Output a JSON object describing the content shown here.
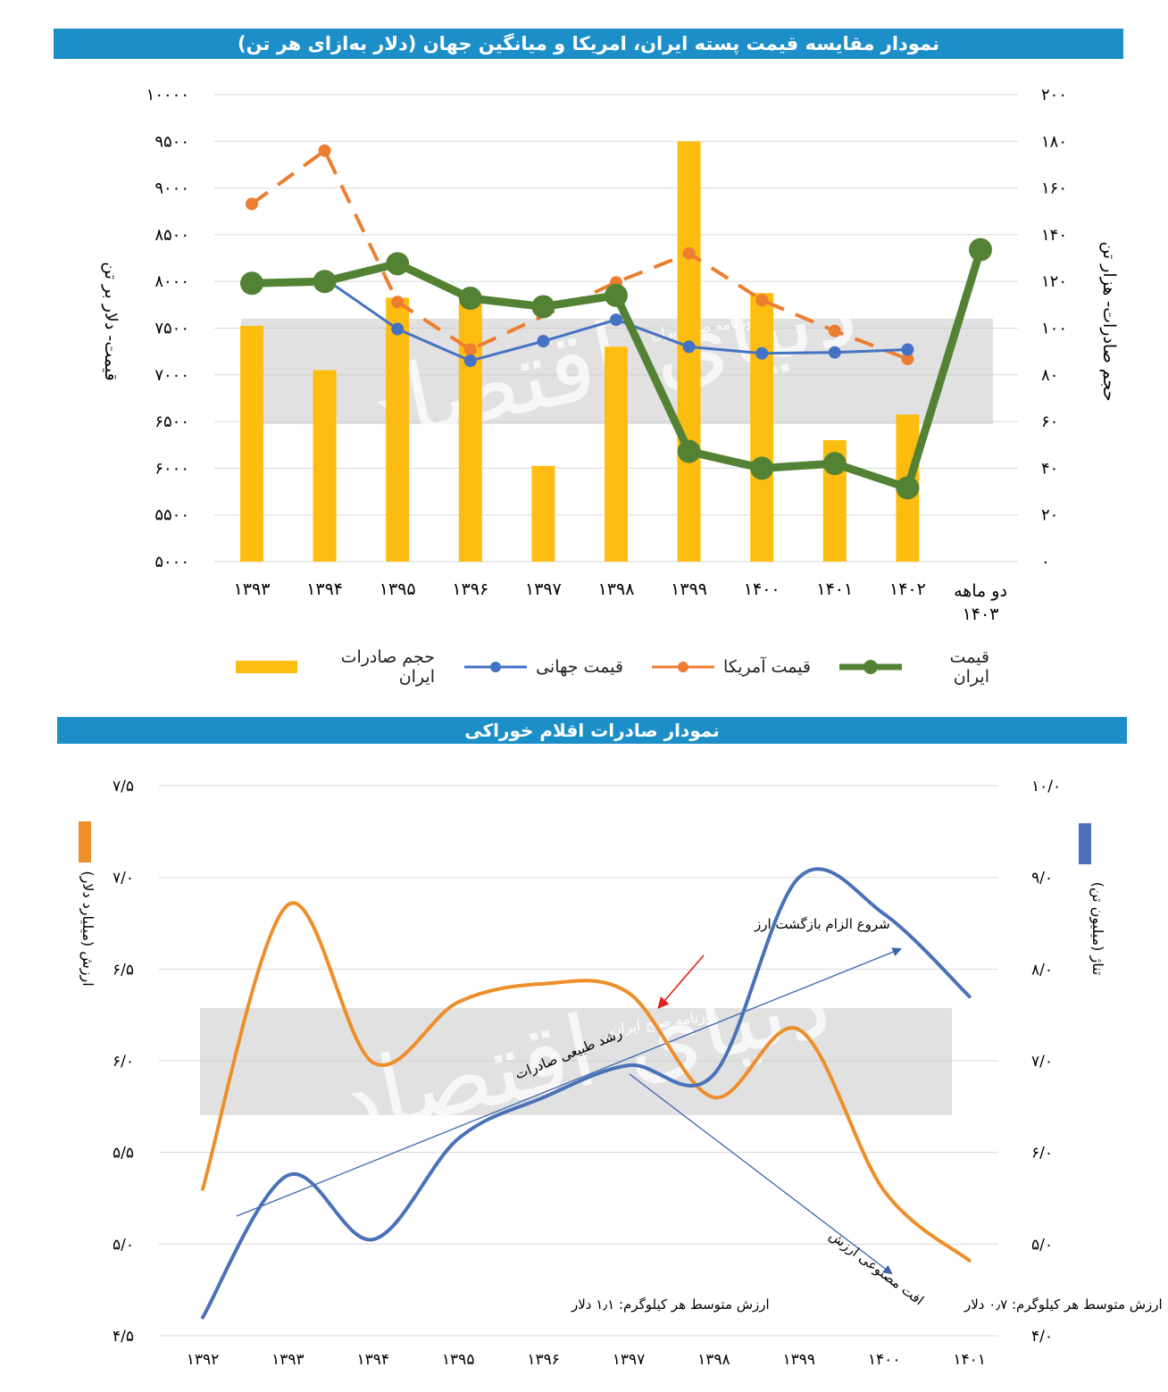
{
  "chart_data": [
    {
      "type": "bar+line",
      "title": "نمودار مقایسه قیمت پسته ایران، امریکا و میانگین جهان (دلار به‌ازای هر تن)",
      "categories": [
        "۱۳۹۳",
        "۱۳۹۴",
        "۱۳۹۵",
        "۱۳۹۶",
        "۱۳۹۷",
        "۱۳۹۸",
        "۱۳۹۹",
        "۱۴۰۰",
        "۱۴۰۱",
        "۱۴۰۲",
        "دو ماهه ۱۴۰۳"
      ],
      "ylabel_left": "قیمت- دلار بر تن",
      "ylabel_right": "حجم صادرات- هزار تن",
      "yticks_left": [
        "۱۰۰۰۰",
        "۹۵۰۰",
        "۹۰۰۰",
        "۸۵۰۰",
        "۸۰۰۰",
        "۷۵۰۰",
        "۷۰۰۰",
        "۶۵۰۰",
        "۶۰۰۰",
        "۵۵۰۰",
        "۵۰۰۰"
      ],
      "yticks_right": [
        "۲۰۰",
        "۱۸۰",
        "۱۶۰",
        "۱۴۰",
        "۱۲۰",
        "۱۰۰",
        "۸۰",
        "۶۰",
        "۴۰",
        "۲۰",
        "۰"
      ],
      "ylim_left": [
        5000,
        10000
      ],
      "ylim_right": [
        0,
        200
      ],
      "bars": {
        "name": "حجم صادرات ایران",
        "color": "#fdbd10",
        "axis": "right",
        "values": [
          101,
          82,
          113,
          111,
          41,
          92,
          180,
          115,
          52,
          63,
          null
        ]
      },
      "series": [
        {
          "name": "قیمت ایران",
          "color": "#548235",
          "style": "solid-thick",
          "axis": "left",
          "values": [
            7980,
            8000,
            8190,
            7820,
            7730,
            7850,
            6180,
            6000,
            6050,
            5790,
            8340
          ]
        },
        {
          "name": "قیمت آمریکا",
          "color": "#ed7d31",
          "style": "dashed",
          "axis": "left",
          "values": [
            8830,
            9400,
            7780,
            7270,
            null,
            7990,
            8300,
            7800,
            7470,
            7170,
            null
          ]
        },
        {
          "name": "قیمت جهانی",
          "color": "#4472c4",
          "style": "solid",
          "axis": "left",
          "values": [
            7940,
            8030,
            7490,
            7150,
            7360,
            7590,
            7300,
            7230,
            7240,
            7270,
            null
          ]
        }
      ],
      "legend_position": "bottom",
      "legend_order": [
        "قیمت ایران",
        "قیمت آمریکا",
        "قیمت جهانی",
        "حجم صادرات ایران"
      ]
    },
    {
      "type": "line",
      "title": "نمودار صادرات اقلام خوراکی",
      "categories": [
        "۱۳۹۲",
        "۱۳۹۳",
        "۱۳۹۴",
        "۱۳۹۵",
        "۱۳۹۶",
        "۱۳۹۷",
        "۱۳۹۸",
        "۱۳۹۹",
        "۱۴۰۰",
        "۱۴۰۱"
      ],
      "ylabel_left": "ارزش (میلیارد دلار)",
      "ylabel_right": "تناژ (میلیون تن)",
      "yticks_left": [
        "۷/۵",
        "۷/۰",
        "۶/۵",
        "۶/۰",
        "۵/۵",
        "۵/۰",
        "۴/۵"
      ],
      "yticks_right": [
        "۱۰/۰",
        "۹/۰",
        "۸/۰",
        "۷/۰",
        "۶/۰",
        "۵/۰",
        "۴/۰"
      ],
      "ylim_left": [
        4.5,
        7.5
      ],
      "ylim_right": [
        4.0,
        10.0
      ],
      "series": [
        {
          "name": "ارزش",
          "color": "#ed8e2a",
          "axis": "left",
          "values": [
            5.3,
            6.85,
            5.99,
            6.32,
            6.42,
            6.37,
            5.8,
            6.17,
            5.29,
            4.91
          ]
        },
        {
          "name": "تناژ",
          "color": "#4a71b8",
          "axis": "right",
          "values": [
            4.2,
            5.75,
            5.05,
            6.15,
            6.6,
            6.95,
            6.85,
            9.0,
            8.6,
            7.7
          ]
        }
      ],
      "annotations": [
        "شروع الزام بازگشت ارز",
        "رشد طبیعی صادرات",
        "افت مصنوعی ارزش",
        "ارزش متوسط هر کیلوگرم: ۱٫۱ دلار",
        "ارزش متوسط هر کیلوگرم: ۰٫۷ دلار"
      ]
    }
  ],
  "watermark": {
    "stamp": "روزنامه صبح ایران",
    "logo": "دنیای اقتصاد"
  }
}
